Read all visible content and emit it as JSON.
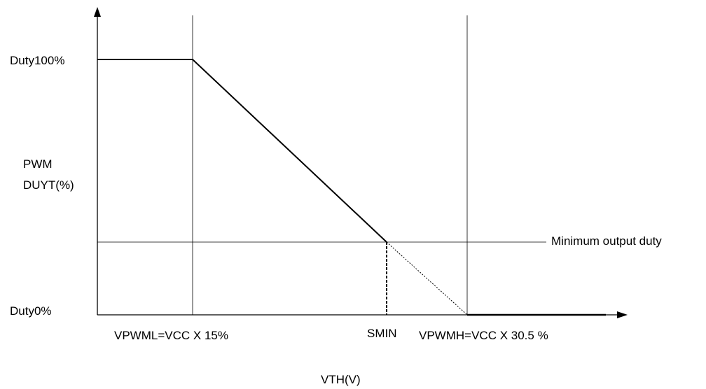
{
  "labels": {
    "duty_high": "Duty100%",
    "duty_low": "Duty0%",
    "y_label_line1": "PWM",
    "y_label_line2": "DUYT(%)",
    "x_label": "VTH(V)",
    "min_duty": "Minimum output duty",
    "vpwml": "VPWML=VCC X 15%",
    "smin": "SMIN",
    "vpwmh": "VPWMH=VCC X 30.5 %"
  },
  "colors": {
    "line": "#000000",
    "guide": "#000000",
    "background": "#ffffff"
  }
}
